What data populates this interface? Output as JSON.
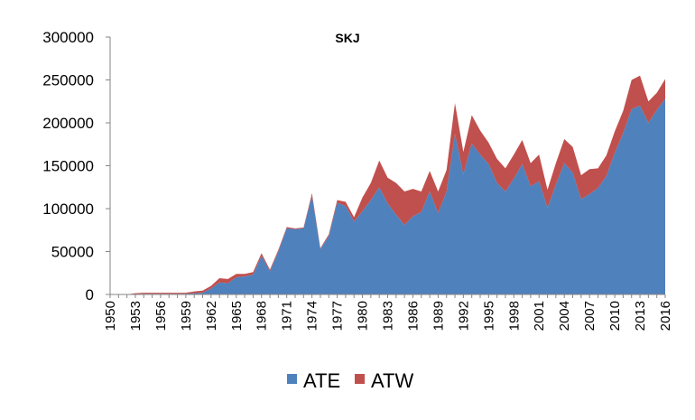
{
  "chart_data": {
    "type": "area",
    "stacked": true,
    "title": "SKJ",
    "xlabel": "",
    "ylabel": "",
    "ylim": [
      0,
      300000
    ],
    "yticks": [
      "0",
      "50000",
      "100000",
      "150000",
      "200000",
      "250000",
      "300000"
    ],
    "xtick_labels": [
      "1950",
      "1953",
      "1956",
      "1959",
      "1962",
      "1965",
      "1968",
      "1971",
      "1974",
      "1977",
      "1980",
      "1983",
      "1986",
      "1989",
      "1992",
      "1995",
      "1998",
      "2001",
      "2004",
      "2007",
      "2010",
      "2013",
      "2016"
    ],
    "legend_position": "bottom",
    "x": [
      1950,
      1951,
      1952,
      1953,
      1954,
      1955,
      1956,
      1957,
      1958,
      1959,
      1960,
      1961,
      1962,
      1963,
      1964,
      1965,
      1966,
      1967,
      1968,
      1969,
      1970,
      1971,
      1972,
      1973,
      1974,
      1975,
      1976,
      1977,
      1978,
      1979,
      1980,
      1981,
      1982,
      1983,
      1984,
      1985,
      1986,
      1987,
      1988,
      1989,
      1990,
      1991,
      1992,
      1993,
      1994,
      1995,
      1996,
      1997,
      1998,
      1999,
      2000,
      2001,
      2002,
      2003,
      2004,
      2005,
      2006,
      2007,
      2008,
      2009,
      2010,
      2011,
      2012,
      2013,
      2014,
      2015,
      2016
    ],
    "series": [
      {
        "name": "ATE",
        "color": "#4f81bd",
        "values": [
          0,
          0,
          0,
          500,
          800,
          800,
          800,
          800,
          800,
          800,
          1500,
          2000,
          7000,
          14000,
          13000,
          20000,
          21000,
          23000,
          45000,
          27000,
          50000,
          77000,
          76000,
          77000,
          115000,
          53000,
          68000,
          107000,
          103000,
          85000,
          97000,
          110000,
          125000,
          106000,
          93000,
          81000,
          91000,
          96000,
          120000,
          95000,
          120000,
          187000,
          140000,
          176000,
          163000,
          152000,
          130000,
          120000,
          135000,
          152000,
          126000,
          132000,
          101000,
          128000,
          153000,
          142000,
          111000,
          117000,
          124000,
          138000,
          165000,
          188000,
          216000,
          220000,
          200000,
          215000,
          228000
        ]
      },
      {
        "name": "ATW",
        "color": "#c0504d",
        "values": [
          0,
          0,
          0,
          1000,
          1200,
          1200,
          1200,
          1200,
          1200,
          1200,
          2000,
          2500,
          3000,
          5000,
          5000,
          4000,
          3000,
          3000,
          3000,
          2000,
          2000,
          1500,
          1000,
          1000,
          3000,
          1000,
          2000,
          3000,
          5000,
          5000,
          16000,
          20000,
          31000,
          30000,
          37000,
          39000,
          32000,
          24000,
          24000,
          25000,
          25000,
          36000,
          26000,
          33000,
          28000,
          25000,
          28000,
          27000,
          28000,
          28000,
          27000,
          31000,
          21000,
          25000,
          28000,
          30000,
          28000,
          29000,
          23000,
          24000,
          25000,
          26000,
          34000,
          35000,
          25000,
          20000,
          23000
        ]
      }
    ]
  }
}
